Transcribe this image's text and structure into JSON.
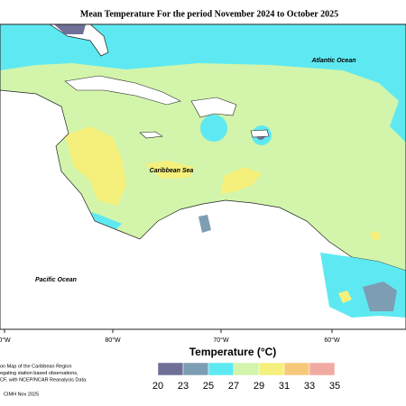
{
  "title": "Mean Temperature For the period November 2024 to October 2025",
  "map": {
    "labels": [
      "Atlantic Ocean",
      "Caribbean Sea",
      "Pacific Ocean"
    ],
    "longitudes": [
      "0°W",
      "80°W",
      "70°W",
      "60°W"
    ]
  },
  "legend": {
    "title": "Temperature (°C)",
    "ticks": [
      20,
      23,
      25,
      27,
      29,
      31,
      33,
      35
    ],
    "colors": [
      "#6f6f98",
      "#7d9db3",
      "#5ee9f2",
      "#d2f5ab",
      "#f5f07c",
      "#f6c97a",
      "#f1aaa2"
    ]
  },
  "footer": {
    "lines": [
      "on Map of the Caribbean Region",
      "egating station based observations,",
      "CF, with NCEP/NCAR Reanalysis Data."
    ],
    "credit": "CIMH Nov 2025"
  }
}
